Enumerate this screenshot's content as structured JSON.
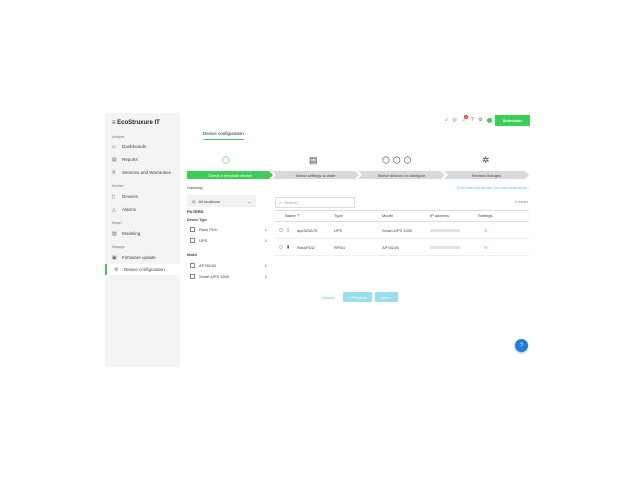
{
  "app": {
    "logo": "EcoStruxure IT",
    "brand": "Schneider Electric",
    "brand_color": "#3dcd58"
  },
  "sidebar": {
    "sections": [
      {
        "title": "Analyze",
        "items": [
          {
            "label": "Dashboards",
            "icon": "eye-icon"
          },
          {
            "label": "Reports",
            "icon": "document-icon"
          },
          {
            "label": "Services and Warranties",
            "icon": "wrench-icon"
          }
        ]
      },
      {
        "title": "Monitor",
        "items": [
          {
            "label": "Devices",
            "icon": "device-icon"
          },
          {
            "label": "Alarms",
            "icon": "alarm-icon"
          }
        ]
      },
      {
        "title": "Model",
        "items": [
          {
            "label": "Modeling",
            "icon": "model-icon"
          }
        ]
      },
      {
        "title": "Manage",
        "items": [
          {
            "label": "Firmware update",
            "icon": "firmware-icon"
          },
          {
            "label": "Device configuration",
            "icon": "gear-icon",
            "active": true
          }
        ]
      }
    ]
  },
  "header": {
    "icons": [
      "search-icon",
      "help-icon",
      "notification-icon",
      "question-icon",
      "settings-icon",
      "status-icon"
    ],
    "notification_count": "1"
  },
  "tab": "Device configuration",
  "steps": [
    {
      "label": "Select a template device",
      "active": true
    },
    {
      "label": "Select settings to write"
    },
    {
      "label": "Select devices to configure"
    },
    {
      "label": "Review changes"
    }
  ],
  "filters": {
    "gateway_label": "Gateway",
    "gateway_value": "All locations",
    "title": "FILTERS",
    "device_type_label": "Device Type",
    "device_types": [
      {
        "label": "Rack PDU",
        "count": "1"
      },
      {
        "label": "UPS",
        "count": "1"
      }
    ],
    "model_label": "Model",
    "models": [
      {
        "label": "AP7821B",
        "count": "1"
      },
      {
        "label": "Smart-UPS 1500",
        "count": "1"
      }
    ]
  },
  "help_link": "Don't see the device you are looking for?",
  "search": {
    "placeholder": "Search..."
  },
  "results": "2 results",
  "table": {
    "columns": [
      "Name",
      "Type",
      "Model",
      "IP address",
      "Settings"
    ],
    "rows": [
      {
        "name": "apc323A70",
        "type": "UPS",
        "model": "Smart-UPS 1500"
      },
      {
        "name": "RackPDU",
        "type": "RPDU",
        "model": "AP7821B"
      }
    ]
  },
  "buttons": {
    "cancel": "Cancel",
    "previous": "< Previous",
    "next": "Next >"
  }
}
